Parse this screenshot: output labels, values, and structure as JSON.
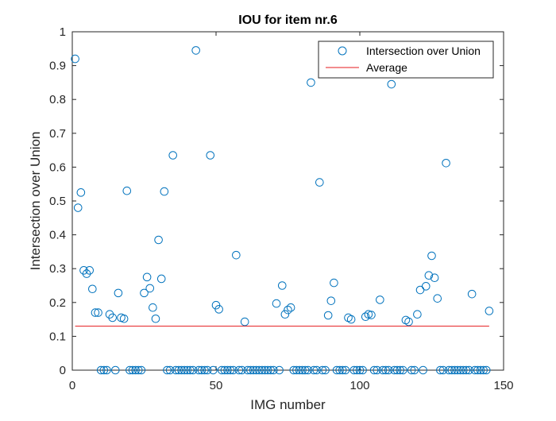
{
  "colors": {
    "marker": "#0072BD",
    "average_line": "#E41A1C",
    "axis": "#262626",
    "background": "#FFFFFF"
  },
  "chart_data": {
    "type": "scatter",
    "title": "IOU for item nr.6",
    "xlabel": "IMG number",
    "ylabel": "Intersection over Union",
    "xlim": [
      0,
      150
    ],
    "ylim": [
      0,
      1
    ],
    "xticks": [
      0,
      50,
      100,
      150
    ],
    "xtick_labels": [
      "0",
      "50",
      "100",
      "150"
    ],
    "yticks": [
      0,
      0.1,
      0.2,
      0.3,
      0.4,
      0.5,
      0.6,
      0.7,
      0.8,
      0.9,
      1
    ],
    "ytick_labels": [
      "0",
      "0.1",
      "0.2",
      "0.3",
      "0.4",
      "0.5",
      "0.6",
      "0.7",
      "0.8",
      "0.9",
      "1"
    ],
    "grid": false,
    "legend_position": "top-right",
    "series": [
      {
        "name": "Intersection over Union",
        "kind": "marker-circle",
        "x": [
          1,
          2,
          3,
          4,
          5,
          6,
          7,
          8,
          9,
          10,
          11,
          12,
          13,
          14,
          15,
          16,
          17,
          18,
          19,
          20,
          21,
          22,
          23,
          24,
          25,
          26,
          27,
          28,
          29,
          30,
          31,
          32,
          33,
          34,
          35,
          36,
          37,
          38,
          39,
          40,
          41,
          42,
          43,
          44,
          45,
          46,
          47,
          48,
          49,
          50,
          51,
          52,
          53,
          54,
          55,
          56,
          57,
          58,
          59,
          60,
          61,
          62,
          63,
          64,
          65,
          66,
          67,
          68,
          69,
          70,
          71,
          72,
          73,
          74,
          75,
          76,
          77,
          78,
          79,
          80,
          81,
          82,
          83,
          84,
          85,
          86,
          87,
          88,
          89,
          90,
          91,
          92,
          93,
          94,
          95,
          96,
          97,
          98,
          99,
          100,
          101,
          102,
          103,
          104,
          105,
          106,
          107,
          108,
          109,
          110,
          111,
          112,
          113,
          114,
          115,
          116,
          117,
          118,
          119,
          120,
          121,
          122,
          123,
          124,
          125,
          126,
          127,
          128,
          129,
          130,
          131,
          132,
          133,
          134,
          135,
          136,
          137,
          138,
          139,
          140,
          141,
          142,
          143,
          144,
          145
        ],
        "y": [
          0.92,
          0.48,
          0.525,
          0.295,
          0.285,
          0.295,
          0.24,
          0.17,
          0.17,
          0,
          0,
          0,
          0.165,
          0.155,
          0,
          0.228,
          0.155,
          0.152,
          0.53,
          0,
          0,
          0,
          0,
          0,
          0.228,
          0.275,
          0.242,
          0.185,
          0.152,
          0.385,
          0.27,
          0.528,
          0,
          0,
          0.635,
          0,
          0,
          0,
          0,
          0,
          0,
          0,
          0.945,
          0,
          0,
          0,
          0,
          0.635,
          0,
          0.192,
          0.18,
          0,
          0,
          0,
          0,
          0,
          0.34,
          0,
          0,
          0.143,
          0,
          0,
          0,
          0,
          0,
          0,
          0,
          0,
          0,
          0,
          0.197,
          0,
          0.25,
          0.165,
          0.178,
          0.185,
          0,
          0,
          0,
          0,
          0,
          0,
          0.85,
          0,
          0,
          0.555,
          0,
          0,
          0.162,
          0.205,
          0.258,
          0,
          0,
          0,
          0,
          0.155,
          0.15,
          0,
          0,
          0,
          0,
          0.158,
          0.165,
          0.163,
          0,
          0,
          0.208,
          0,
          0,
          0,
          0.845,
          0,
          0,
          0,
          0,
          0.148,
          0.143,
          0,
          0,
          0.165,
          0.237,
          0,
          0.248,
          0.28,
          0.338,
          0.273,
          0.212,
          0,
          0,
          0.612,
          0,
          0,
          0,
          0,
          0,
          0,
          0,
          0,
          0.225,
          0,
          0,
          0,
          0,
          0,
          0.175
        ]
      },
      {
        "name": "Average",
        "kind": "line",
        "x": [
          1,
          145
        ],
        "y": [
          0.13,
          0.13
        ]
      }
    ]
  }
}
